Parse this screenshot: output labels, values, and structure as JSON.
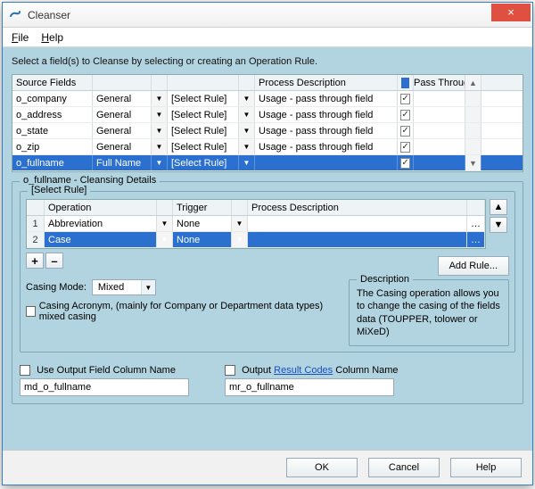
{
  "window": {
    "title": "Cleanser"
  },
  "menu": {
    "file": "File",
    "help": "Help"
  },
  "instruction": "Select a field(s) to Cleanse by selecting or creating an Operation Rule.",
  "src_headers": {
    "field": "Source Fields",
    "process": "Process Description",
    "pass": "Pass Through"
  },
  "src_rows": [
    {
      "name": "o_company",
      "type": "General",
      "rule": "[Select Rule]",
      "proc": "Usage - pass through field",
      "pass": true,
      "sel": false
    },
    {
      "name": "o_address",
      "type": "General",
      "rule": "[Select Rule]",
      "proc": "Usage - pass through field",
      "pass": true,
      "sel": false
    },
    {
      "name": "o_state",
      "type": "General",
      "rule": "[Select Rule]",
      "proc": "Usage - pass through field",
      "pass": true,
      "sel": false
    },
    {
      "name": "o_zip",
      "type": "General",
      "rule": "[Select Rule]",
      "proc": "Usage - pass through field",
      "pass": true,
      "sel": false
    },
    {
      "name": "o_fullname",
      "type": "Full Name",
      "rule": "[Select Rule]",
      "proc": "",
      "pass": true,
      "sel": true
    }
  ],
  "details": {
    "legend": "o_fullname - Cleansing Details",
    "sub_legend": "[Select Rule]",
    "rule_headers": {
      "op": "Operation",
      "trig": "Trigger",
      "proc": "Process Description"
    },
    "rules": [
      {
        "n": "1",
        "op": "Abbreviation",
        "trig": "None",
        "proc": "",
        "sel": false
      },
      {
        "n": "2",
        "op": "Case",
        "trig": "None",
        "proc": "",
        "sel": true
      }
    ],
    "add_rule_label": "Add Rule...",
    "casing_mode_label": "Casing Mode:",
    "casing_mode_value": "Mixed",
    "acronym_label": "Casing Acronym, (mainly for Company or Department data types) mixed casing",
    "desc_legend": "Description",
    "desc_text": "The Casing operation allows you to change the casing of the fields data (TOUPPER, tolower or MiXeD)"
  },
  "output": {
    "use_col_label": "Use Output Field Column Name",
    "use_col_value": "md_o_fullname",
    "result_prefix": "Output ",
    "result_link": "Result Codes",
    "result_suffix": " Column Name",
    "result_value": "mr_o_fullname"
  },
  "buttons": {
    "ok": "OK",
    "cancel": "Cancel",
    "help": "Help"
  },
  "colors": {
    "panel": "#b2d4e0",
    "selection": "#2b6fcf",
    "close": "#e05040"
  }
}
